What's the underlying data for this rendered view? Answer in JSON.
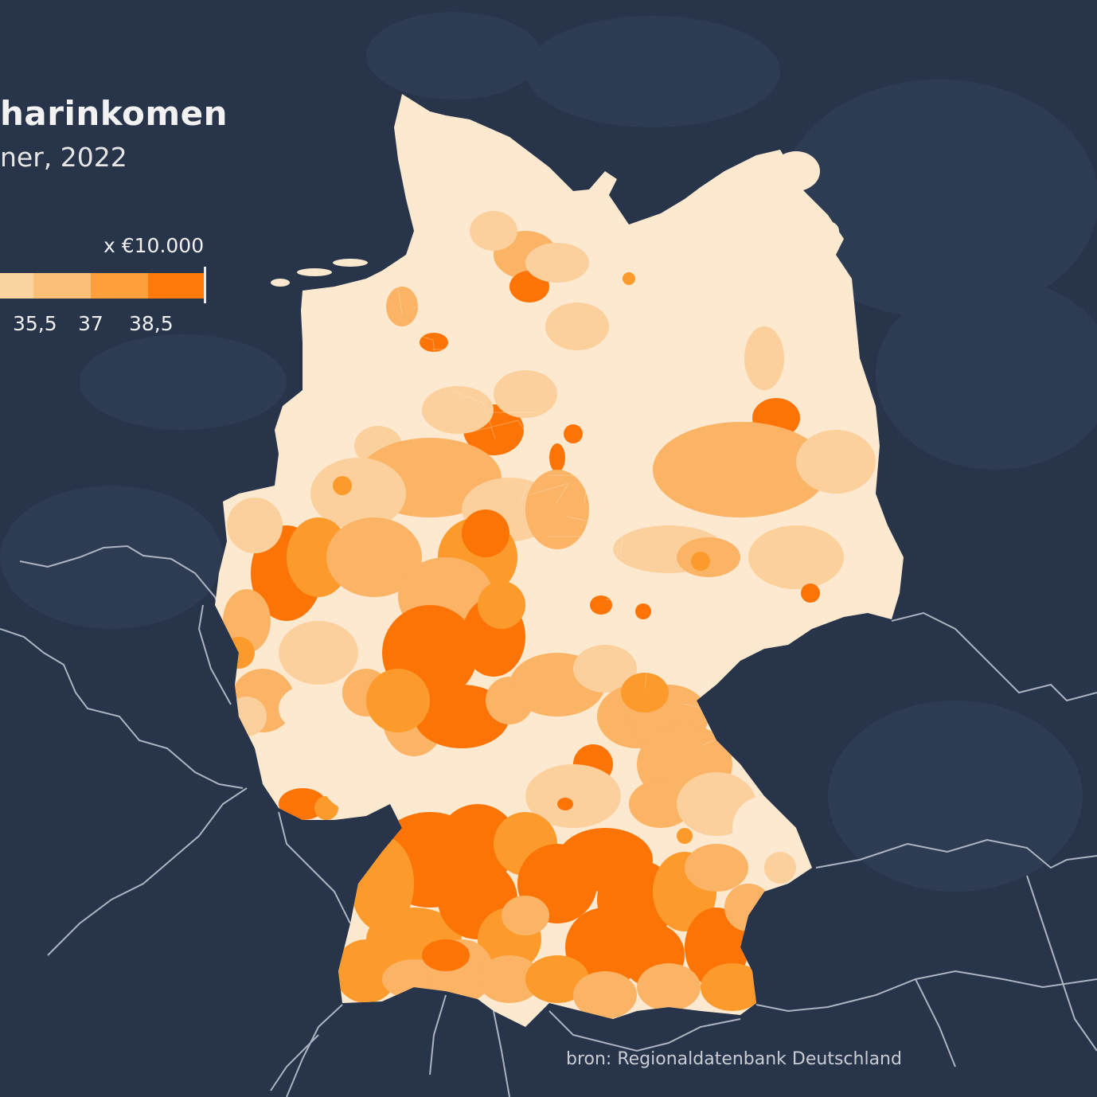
{
  "map": {
    "title": "harinkomen",
    "subtitle": "ner, 2022",
    "unit_label": "x €10.000",
    "legend": {
      "ticks": [
        "35,5",
        "37",
        "38,5"
      ],
      "colors": [
        "#fbd3a0",
        "#fcbf78",
        "#fda94e",
        "#fe9324",
        "#fe7b0a"
      ]
    },
    "source": "bron: Regionaldatenbank Deutschland",
    "colors": {
      "background": "#27344a",
      "sea_texture": "#34435b",
      "border_lines": "#c4cad6",
      "lowest": "#fde9d0",
      "low": "#fbd09c",
      "mid": "#fbb365",
      "high": "#fd9a2c",
      "highest": "#fd7406"
    }
  }
}
